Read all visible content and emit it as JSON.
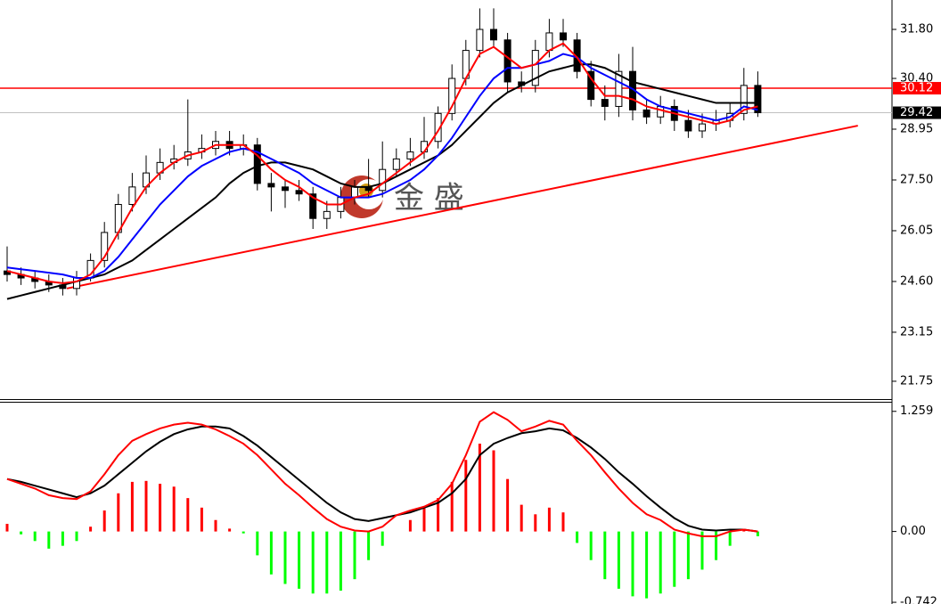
{
  "chart_data": [
    {
      "type": "candlestick",
      "open": [
        24.9,
        24.8,
        24.7,
        24.6,
        24.5,
        24.4,
        24.7,
        25.2,
        26.0,
        26.8,
        27.3,
        27.7,
        28.0,
        28.1,
        28.3,
        28.4,
        28.6,
        28.4,
        28.5,
        27.4,
        27.3,
        27.2,
        27.1,
        26.4,
        26.6,
        27.0,
        27.3,
        27.2,
        27.8,
        28.1,
        28.3,
        28.6,
        29.4,
        30.4,
        31.2,
        31.8,
        31.5,
        30.3,
        30.2,
        31.2,
        31.7,
        31.5,
        30.6,
        29.8,
        29.6,
        30.6,
        29.5,
        29.3,
        29.6,
        29.2,
        28.9,
        29.1,
        29.2,
        29.4,
        30.2
      ],
      "high": [
        25.6,
        25.0,
        24.9,
        24.8,
        24.7,
        24.9,
        25.4,
        26.3,
        27.1,
        27.7,
        28.2,
        28.4,
        28.5,
        29.8,
        28.8,
        28.9,
        28.9,
        28.8,
        28.7,
        27.7,
        27.5,
        27.5,
        27.3,
        26.9,
        27.3,
        27.5,
        28.1,
        28.6,
        28.4,
        28.7,
        29.3,
        29.6,
        30.8,
        31.5,
        32.4,
        32.4,
        31.7,
        30.6,
        31.5,
        32.1,
        32.1,
        31.7,
        30.9,
        30.2,
        31.1,
        31.3,
        29.8,
        29.9,
        29.8,
        29.5,
        29.4,
        29.5,
        29.7,
        30.7,
        30.6
      ],
      "low": [
        24.6,
        24.5,
        24.4,
        24.3,
        24.2,
        24.2,
        24.6,
        25.0,
        25.8,
        26.6,
        27.1,
        27.5,
        27.8,
        27.9,
        28.1,
        28.2,
        28.2,
        28.2,
        27.2,
        26.6,
        26.7,
        26.9,
        26.1,
        26.1,
        26.4,
        26.8,
        27.0,
        27.0,
        27.6,
        27.9,
        28.1,
        28.4,
        29.2,
        30.2,
        31.0,
        31.3,
        30.0,
        30.0,
        30.0,
        31.0,
        31.3,
        30.4,
        29.6,
        29.2,
        29.3,
        29.2,
        29.1,
        29.1,
        28.9,
        28.7,
        28.7,
        28.9,
        29.0,
        29.2,
        29.3
      ],
      "close": [
        24.8,
        24.7,
        24.6,
        24.5,
        24.4,
        24.7,
        25.2,
        26.0,
        26.8,
        27.3,
        27.7,
        28.0,
        28.1,
        28.3,
        28.4,
        28.6,
        28.4,
        28.5,
        27.4,
        27.3,
        27.2,
        27.1,
        26.4,
        26.6,
        27.0,
        27.3,
        27.2,
        27.8,
        28.1,
        28.3,
        28.6,
        29.4,
        30.4,
        31.2,
        31.8,
        31.5,
        30.3,
        30.2,
        31.2,
        31.7,
        31.5,
        30.6,
        29.8,
        29.6,
        30.6,
        29.5,
        29.3,
        29.6,
        29.2,
        28.9,
        29.1,
        29.2,
        29.4,
        30.2,
        29.42
      ],
      "series": [
        {
          "color": "#000000",
          "values": [
            24.1,
            24.2,
            24.3,
            24.4,
            24.5,
            24.6,
            24.7,
            24.8,
            25.0,
            25.2,
            25.5,
            25.8,
            26.1,
            26.4,
            26.7,
            27.0,
            27.4,
            27.7,
            27.9,
            28.0,
            28.0,
            27.9,
            27.8,
            27.6,
            27.4,
            27.3,
            27.3,
            27.4,
            27.6,
            27.8,
            28.0,
            28.2,
            28.5,
            28.9,
            29.3,
            29.7,
            30.0,
            30.2,
            30.4,
            30.6,
            30.7,
            30.8,
            30.8,
            30.7,
            30.5,
            30.3,
            30.2,
            30.1,
            30.0,
            29.9,
            29.8,
            29.7,
            29.7,
            29.7,
            29.7
          ]
        },
        {
          "color": "#0000ff",
          "values": [
            25.0,
            24.95,
            24.9,
            24.85,
            24.8,
            24.7,
            24.7,
            24.9,
            25.3,
            25.8,
            26.3,
            26.8,
            27.2,
            27.6,
            27.9,
            28.1,
            28.3,
            28.4,
            28.3,
            28.1,
            27.9,
            27.7,
            27.4,
            27.2,
            27.0,
            27.0,
            27.0,
            27.1,
            27.3,
            27.5,
            27.8,
            28.2,
            28.7,
            29.3,
            29.9,
            30.4,
            30.7,
            30.7,
            30.8,
            30.9,
            31.1,
            31.0,
            30.7,
            30.5,
            30.3,
            30.1,
            29.8,
            29.6,
            29.5,
            29.4,
            29.3,
            29.2,
            29.3,
            29.6,
            29.5
          ]
        },
        {
          "color": "#ff0000",
          "values": [
            24.9,
            24.8,
            24.7,
            24.6,
            24.55,
            24.6,
            24.8,
            25.3,
            26.0,
            26.7,
            27.3,
            27.7,
            28.0,
            28.2,
            28.3,
            28.5,
            28.5,
            28.5,
            28.2,
            27.8,
            27.5,
            27.3,
            27.0,
            26.8,
            26.8,
            27.0,
            27.1,
            27.4,
            27.7,
            28.0,
            28.3,
            28.9,
            29.6,
            30.4,
            31.1,
            31.3,
            31.0,
            30.7,
            30.8,
            31.2,
            31.4,
            31.0,
            30.4,
            29.9,
            29.9,
            29.8,
            29.6,
            29.5,
            29.4,
            29.3,
            29.2,
            29.1,
            29.2,
            29.5,
            29.6
          ]
        }
      ],
      "ylim": [
        21.24,
        32.64
      ],
      "yticks": [
        {
          "value": 31.8,
          "label": "31.80"
        },
        {
          "value": 30.4,
          "label": "30.40"
        },
        28.95,
        {
          "value": 27.5,
          "label": "27.50"
        },
        26.05,
        {
          "value": 24.6,
          "label": "24.60"
        },
        23.15,
        21.75
      ],
      "hline": 30.12,
      "hline_color": "#ff0000",
      "current_price": 29.42,
      "trendline": {
        "start": [
          4.3,
          24.4
        ],
        "end": [
          61.2,
          29.05
        ],
        "color": "#ff0000"
      },
      "watermark": "金 盛"
    },
    {
      "type": "macd",
      "histogram": [
        0.08,
        -0.03,
        -0.1,
        -0.18,
        -0.15,
        -0.1,
        0.05,
        0.22,
        0.4,
        0.52,
        0.53,
        0.5,
        0.47,
        0.35,
        0.25,
        0.12,
        0.03,
        -0.02,
        -0.25,
        -0.45,
        -0.55,
        -0.6,
        -0.65,
        -0.65,
        -0.62,
        -0.5,
        -0.3,
        -0.15,
        0.0,
        0.12,
        0.25,
        0.35,
        0.52,
        0.75,
        0.92,
        0.85,
        0.55,
        0.28,
        0.18,
        0.25,
        0.2,
        -0.12,
        -0.3,
        -0.5,
        -0.6,
        -0.68,
        -0.7,
        -0.65,
        -0.58,
        -0.5,
        -0.4,
        -0.3,
        -0.15,
        0.02,
        -0.05
      ],
      "positive_color": "#ff0000",
      "negative_color": "#00ff00",
      "series": [
        {
          "color": "#000000",
          "values": [
            0.55,
            0.52,
            0.48,
            0.44,
            0.4,
            0.36,
            0.4,
            0.48,
            0.6,
            0.72,
            0.84,
            0.94,
            1.02,
            1.07,
            1.1,
            1.1,
            1.08,
            1.0,
            0.9,
            0.78,
            0.66,
            0.54,
            0.42,
            0.3,
            0.2,
            0.13,
            0.11,
            0.14,
            0.17,
            0.2,
            0.25,
            0.3,
            0.4,
            0.55,
            0.8,
            0.92,
            0.98,
            1.03,
            1.05,
            1.08,
            1.06,
            0.98,
            0.88,
            0.76,
            0.62,
            0.5,
            0.37,
            0.25,
            0.14,
            0.06,
            0.02,
            0.01,
            0.02,
            0.02,
            0.0
          ]
        },
        {
          "color": "#ff0000",
          "values": [
            0.55,
            0.5,
            0.45,
            0.38,
            0.35,
            0.34,
            0.42,
            0.6,
            0.8,
            0.95,
            1.02,
            1.08,
            1.12,
            1.14,
            1.12,
            1.07,
            1.0,
            0.92,
            0.8,
            0.65,
            0.5,
            0.38,
            0.25,
            0.13,
            0.05,
            0.01,
            0.0,
            0.05,
            0.17,
            0.22,
            0.26,
            0.33,
            0.5,
            0.8,
            1.15,
            1.25,
            1.17,
            1.05,
            1.1,
            1.16,
            1.12,
            0.95,
            0.8,
            0.62,
            0.45,
            0.3,
            0.18,
            0.12,
            0.02,
            -0.02,
            -0.05,
            -0.05,
            0.0,
            0.02,
            0.0
          ]
        }
      ],
      "ylim": [
        -0.76,
        1.35
      ],
      "yticks": [
        1.259,
        {
          "value": 0,
          "label": "0.00"
        },
        -0.742
      ]
    }
  ]
}
